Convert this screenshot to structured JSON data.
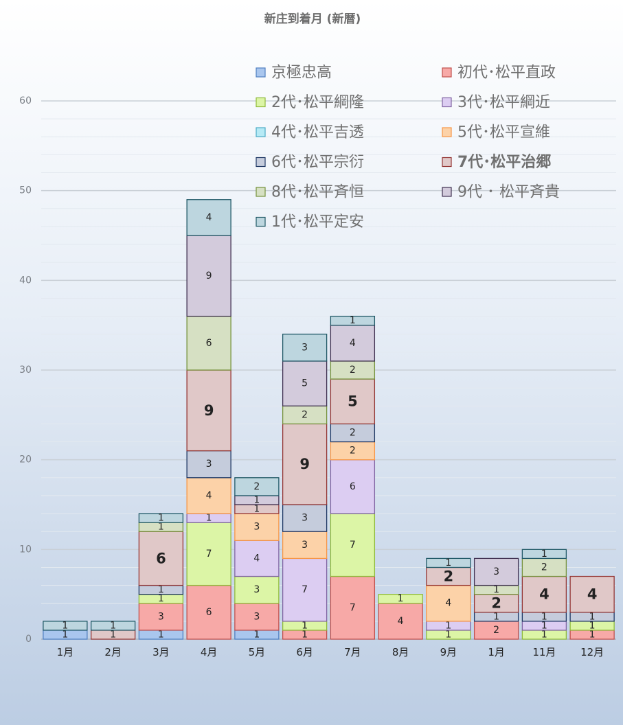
{
  "chart_data": {
    "type": "bar",
    "stacked": true,
    "title": "新庄到着月 (新暦)",
    "xlabel": "",
    "ylabel": "",
    "ylim": [
      0,
      60
    ],
    "yticks": [
      0,
      10,
      20,
      30,
      40,
      50,
      60
    ],
    "grid": true,
    "legend_position": "top-right",
    "categories": [
      "1月",
      "2月",
      "3月",
      "4月",
      "5月",
      "6月",
      "7月",
      "8月",
      "9月",
      "1月",
      "11月",
      "12月"
    ],
    "series": [
      {
        "name": "京極忠高",
        "color": "#a9c6ee",
        "edge": "#4f7fc0",
        "values": [
          1,
          0,
          1,
          0,
          1,
          0,
          0,
          0,
          0,
          0,
          0,
          0
        ]
      },
      {
        "name": "初代･松平直政",
        "color": "#f7a9a7",
        "edge": "#c0504d",
        "values": [
          0,
          0,
          3,
          6,
          3,
          1,
          7,
          4,
          0,
          2,
          0,
          1
        ]
      },
      {
        "name": "2代･松平綱隆",
        "color": "#dcf5a6",
        "edge": "#8fba3a",
        "values": [
          0,
          0,
          1,
          7,
          3,
          1,
          7,
          1,
          1,
          0,
          1,
          1
        ]
      },
      {
        "name": "3代･松平綱近",
        "color": "#dccdf2",
        "edge": "#8064a2",
        "values": [
          0,
          0,
          0,
          1,
          4,
          7,
          6,
          0,
          1,
          0,
          1,
          0
        ]
      },
      {
        "name": "4代･松平吉透",
        "color": "#b6eaf5",
        "edge": "#4bacc6",
        "values": [
          0,
          0,
          0,
          0,
          0,
          0,
          0,
          0,
          0,
          0,
          0,
          0
        ]
      },
      {
        "name": "5代･松平宣維",
        "color": "#fcd2a8",
        "edge": "#f79646",
        "values": [
          0,
          0,
          0,
          4,
          3,
          3,
          2,
          0,
          4,
          0,
          0,
          0
        ]
      },
      {
        "name": "6代･松平宗衍",
        "color": "#c5ccdc",
        "edge": "#1f3864",
        "values": [
          0,
          0,
          1,
          3,
          0,
          3,
          2,
          0,
          0,
          1,
          1,
          1
        ]
      },
      {
        "name": "7代･松平治郷",
        "color": "#e0c8c8",
        "edge": "#943634",
        "values": [
          0,
          1,
          6,
          9,
          1,
          9,
          5,
          0,
          2,
          2,
          4,
          4
        ]
      },
      {
        "name": "8代･松平斉恒",
        "color": "#d6e0c3",
        "edge": "#76923c",
        "values": [
          0,
          0,
          1,
          6,
          0,
          2,
          2,
          0,
          0,
          1,
          2,
          0
        ]
      },
      {
        "name": "9代 ･ 松平斉貴",
        "color": "#d3cbdc",
        "edge": "#403151",
        "values": [
          0,
          0,
          0,
          9,
          1,
          5,
          4,
          0,
          0,
          3,
          0,
          0
        ]
      },
      {
        "name": "1代･松平定安",
        "color": "#bdd6df",
        "edge": "#215967",
        "values": [
          1,
          1,
          1,
          4,
          2,
          3,
          1,
          0,
          1,
          0,
          1,
          0
        ]
      }
    ]
  }
}
